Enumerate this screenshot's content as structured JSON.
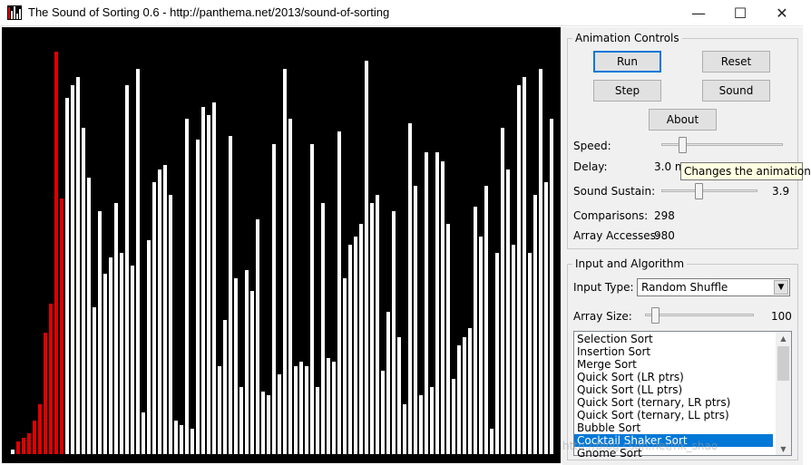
{
  "window": {
    "title": "The Sound of Sorting 0.6 - http://panthema.net/2013/sound-of-sorting",
    "minimize_glyph": "—",
    "maximize_glyph": "☐",
    "close_glyph": "✕"
  },
  "visualization": {
    "bar_color": "#ffffff",
    "highlight_color": "#e00000",
    "max_value": 100,
    "bars": [
      {
        "v": 1,
        "red": false
      },
      {
        "v": 3,
        "red": true
      },
      {
        "v": 4,
        "red": true
      },
      {
        "v": 5,
        "red": true
      },
      {
        "v": 8,
        "red": true
      },
      {
        "v": 12,
        "red": true
      },
      {
        "v": 29,
        "red": true
      },
      {
        "v": 36,
        "red": true
      },
      {
        "v": 96,
        "red": true
      },
      {
        "v": 61,
        "red": true
      },
      {
        "v": 85,
        "red": false
      },
      {
        "v": 88,
        "red": false
      },
      {
        "v": 90,
        "red": false
      },
      {
        "v": 78,
        "red": false
      },
      {
        "v": 66,
        "red": false
      },
      {
        "v": 35,
        "red": false
      },
      {
        "v": 58,
        "red": false
      },
      {
        "v": 43,
        "red": false
      },
      {
        "v": 47,
        "red": false
      },
      {
        "v": 60,
        "red": false
      },
      {
        "v": 48,
        "red": false
      },
      {
        "v": 88,
        "red": false
      },
      {
        "v": 45,
        "red": false
      },
      {
        "v": 92,
        "red": false
      },
      {
        "v": 10,
        "red": false
      },
      {
        "v": 51,
        "red": false
      },
      {
        "v": 65,
        "red": false
      },
      {
        "v": 68,
        "red": false
      },
      {
        "v": 69,
        "red": false
      },
      {
        "v": 62,
        "red": false
      },
      {
        "v": 8,
        "red": false
      },
      {
        "v": 7,
        "red": false
      },
      {
        "v": 80,
        "red": false
      },
      {
        "v": 6,
        "red": false
      },
      {
        "v": 75,
        "red": false
      },
      {
        "v": 83,
        "red": false
      },
      {
        "v": 81,
        "red": false
      },
      {
        "v": 84,
        "red": false
      },
      {
        "v": 21,
        "red": false
      },
      {
        "v": 32,
        "red": false
      },
      {
        "v": 76,
        "red": false
      },
      {
        "v": 42,
        "red": false
      },
      {
        "v": 16,
        "red": false
      },
      {
        "v": 44,
        "red": false
      },
      {
        "v": 39,
        "red": false
      },
      {
        "v": 56,
        "red": false
      },
      {
        "v": 15,
        "red": false
      },
      {
        "v": 14,
        "red": false
      },
      {
        "v": 74,
        "red": false
      },
      {
        "v": 19,
        "red": false
      },
      {
        "v": 92,
        "red": false
      },
      {
        "v": 80,
        "red": false
      },
      {
        "v": 21,
        "red": false
      },
      {
        "v": 22,
        "red": false
      },
      {
        "v": 21,
        "red": false
      },
      {
        "v": 74,
        "red": false
      },
      {
        "v": 16,
        "red": false
      },
      {
        "v": 60,
        "red": false
      },
      {
        "v": 23,
        "red": false
      },
      {
        "v": 22,
        "red": false
      },
      {
        "v": 77,
        "red": false
      },
      {
        "v": 42,
        "red": false
      },
      {
        "v": 50,
        "red": false
      },
      {
        "v": 52,
        "red": false
      },
      {
        "v": 55,
        "red": false
      },
      {
        "v": 94,
        "red": false
      },
      {
        "v": 60,
        "red": false
      },
      {
        "v": 62,
        "red": false
      },
      {
        "v": 20,
        "red": false
      },
      {
        "v": 34,
        "red": false
      },
      {
        "v": 58,
        "red": false
      },
      {
        "v": 28,
        "red": false
      },
      {
        "v": 12,
        "red": false
      },
      {
        "v": 79,
        "red": false
      },
      {
        "v": 64,
        "red": false
      },
      {
        "v": 14,
        "red": false
      },
      {
        "v": 72,
        "red": false
      },
      {
        "v": 16,
        "red": false
      },
      {
        "v": 72,
        "red": false
      },
      {
        "v": 70,
        "red": false
      },
      {
        "v": 55,
        "red": false
      },
      {
        "v": 18,
        "red": false
      },
      {
        "v": 26,
        "red": false
      },
      {
        "v": 28,
        "red": false
      },
      {
        "v": 30,
        "red": false
      },
      {
        "v": 59,
        "red": false
      },
      {
        "v": 52,
        "red": false
      },
      {
        "v": 64,
        "red": false
      },
      {
        "v": 6,
        "red": false
      },
      {
        "v": 48,
        "red": false
      },
      {
        "v": 78,
        "red": false
      },
      {
        "v": 68,
        "red": false
      },
      {
        "v": 50,
        "red": false
      },
      {
        "v": 88,
        "red": false
      },
      {
        "v": 90,
        "red": false
      },
      {
        "v": 48,
        "red": false
      },
      {
        "v": 62,
        "red": false
      },
      {
        "v": 92,
        "red": false
      },
      {
        "v": 65,
        "red": false
      },
      {
        "v": 80,
        "red": false
      }
    ]
  },
  "animation_controls": {
    "legend": "Animation Controls",
    "run_label": "Run",
    "reset_label": "Reset",
    "step_label": "Step",
    "sound_label": "Sound",
    "about_label": "About",
    "speed_label": "Speed:",
    "speed_slider_fraction": 0.15,
    "delay_label": "Delay:",
    "delay_value": "3.0 m",
    "sustain_label": "Sound Sustain:",
    "sustain_value": "3.9",
    "sustain_slider_fraction": 0.38,
    "comparisons_label": "Comparisons:",
    "comparisons_value": "298",
    "accesses_label": "Array Accesses:",
    "accesses_value": "980"
  },
  "tooltip": {
    "text": "Changes the animation"
  },
  "input_algorithm": {
    "legend": "Input and Algorithm",
    "input_type_label": "Input Type:",
    "input_type_value": "Random Shuffle",
    "array_size_label": "Array Size:",
    "array_size_value": "100",
    "array_size_slider_fraction": 0.06,
    "algorithms": [
      "Selection Sort",
      "Insertion Sort",
      "Merge Sort",
      "Quick Sort (LR ptrs)",
      "Quick Sort (LL ptrs)",
      "Quick Sort (ternary, LR ptrs)",
      "Quick Sort (ternary, LL ptrs)",
      "Bubble Sort",
      "Cocktail Shaker Sort",
      "Gnome Sort"
    ],
    "selected_index": 8
  },
  "watermark": {
    "text": "http://blog.csdn.net/hk_shao"
  }
}
